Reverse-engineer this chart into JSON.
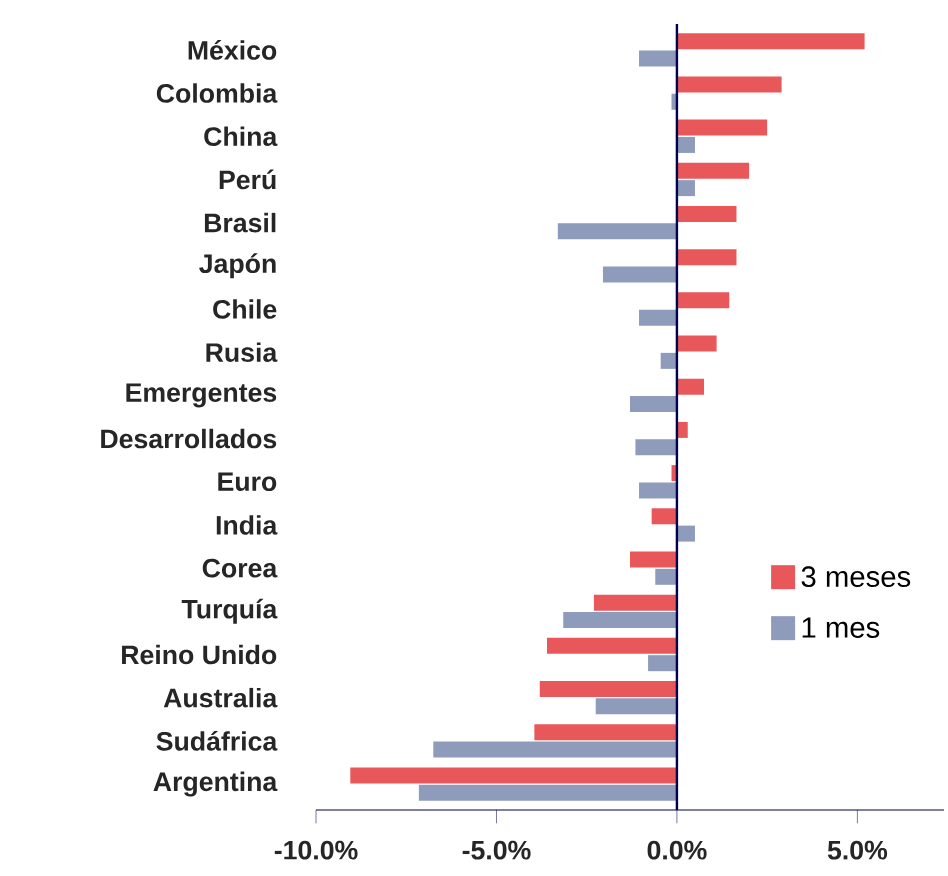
{
  "chart_data": {
    "type": "bar",
    "orientation": "horizontal",
    "categories": [
      "México",
      "Colombia",
      "China",
      "Perú",
      "Brasil",
      "Japón",
      "Chile",
      "Rusia",
      "Emergentes",
      "Desarrollados",
      "Euro",
      "India",
      "Corea",
      "Turquía",
      "Reino Unido",
      "Australia",
      "Sudáfrica",
      "Argentina"
    ],
    "series": [
      {
        "name": "3 meses",
        "color": "#e8585b",
        "values": [
          5.2,
          2.9,
          2.5,
          2.0,
          1.65,
          1.65,
          1.45,
          1.1,
          0.75,
          0.3,
          -0.15,
          -0.7,
          -1.3,
          -2.3,
          -3.6,
          -3.8,
          -3.95,
          -9.05
        ]
      },
      {
        "name": "1 mes",
        "color": "#8e9bbb",
        "values": [
          -1.05,
          -0.15,
          0.5,
          0.5,
          -3.3,
          -2.05,
          -1.05,
          -0.45,
          -1.3,
          -1.15,
          -1.05,
          0.5,
          -0.6,
          -3.15,
          -0.8,
          -2.25,
          -6.75,
          -7.15
        ]
      }
    ],
    "xlim": [
      -10,
      7.4
    ],
    "xticks": [
      {
        "value": -10,
        "label": "-10.0%"
      },
      {
        "value": -5,
        "label": "-5.0%"
      },
      {
        "value": 0,
        "label": "0.0%"
      },
      {
        "value": 5,
        "label": "5.0%"
      }
    ],
    "legend": "bottom right",
    "grid": false
  }
}
